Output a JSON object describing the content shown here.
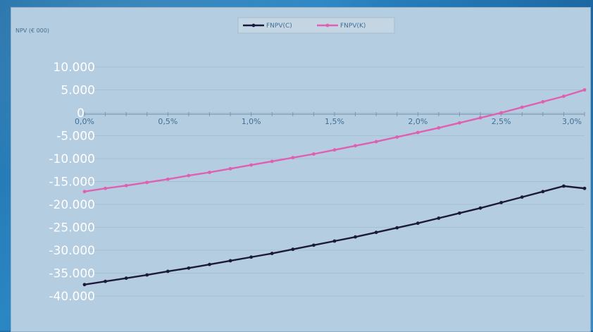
{
  "chart_data": {
    "type": "line",
    "title": "",
    "ylabel": "NPV (€ 000)",
    "xlabel": "",
    "x": [
      0,
      0.00125,
      0.0025,
      0.00375,
      0.005,
      0.00625,
      0.0075,
      0.00875,
      0.01,
      0.01125,
      0.0125,
      0.01375,
      0.015,
      0.01625,
      0.0175,
      0.01875,
      0.02,
      0.02125,
      0.0225,
      0.02375,
      0.025,
      0.02625,
      0.0275,
      0.02875,
      0.03
    ],
    "x_ticks": [
      "0,0%",
      "0,5%",
      "1,0%",
      "1,5%",
      "2,0%",
      "2,5%",
      "3,0%"
    ],
    "x_tick_values": [
      0,
      0.005,
      0.01,
      0.015,
      0.02,
      0.025,
      0.03
    ],
    "y_ticks": [
      "10.000",
      "5.000",
      "0",
      "-5.000",
      "-10.000",
      "-15.000",
      "-20.000",
      "-25.000",
      "-30.000",
      "-35.000",
      "-40.000"
    ],
    "y_tick_values": [
      10000,
      5000,
      0,
      -5000,
      -10000,
      -15000,
      -20000,
      -25000,
      -30000,
      -35000,
      -40000
    ],
    "xlim": [
      0,
      0.03
    ],
    "ylim": [
      -40000,
      10000
    ],
    "grid": true,
    "legend_position": "top-center",
    "series": [
      {
        "name": "FNPV(C)",
        "color": "#1c1a3a",
        "values": [
          -37500,
          -36800,
          -36100,
          -35400,
          -34600,
          -33900,
          -33100,
          -32300,
          -31500,
          -30700,
          -29800,
          -28900,
          -28000,
          -27100,
          -26100,
          -25100,
          -24100,
          -23000,
          -21900,
          -20800,
          -19600,
          -18400,
          -17200,
          -16000,
          -16500
        ]
      },
      {
        "name": "FNPV(K)",
        "color": "#e05fb0",
        "values": [
          -17200,
          -16500,
          -15900,
          -15200,
          -14500,
          -13700,
          -13000,
          -12200,
          -11400,
          -10600,
          -9800,
          -9000,
          -8100,
          -7200,
          -6300,
          -5300,
          -4300,
          -3300,
          -2200,
          -1100,
          0,
          1200,
          2400,
          3600,
          5000
        ]
      }
    ]
  }
}
